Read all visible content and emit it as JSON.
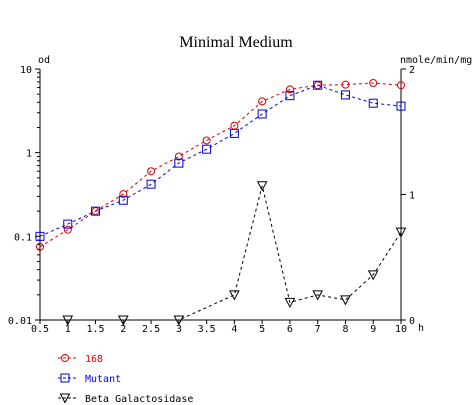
{
  "chart_data": {
    "type": "line",
    "title": "Minimal Medium",
    "ylabel_left": "od",
    "ylabel_right": "nmole/min/mg",
    "xlabel": "h",
    "y_left_scale": "log",
    "y_left_range": [
      0.01,
      10
    ],
    "y_left_ticks": [
      "10",
      "1",
      "0.1",
      "0.01"
    ],
    "y_right_range": [
      0,
      2
    ],
    "y_right_ticks": [
      "2",
      "1",
      "0"
    ],
    "x_range": [
      0.5,
      10
    ],
    "x_tick_labels": [
      "0.5",
      "1",
      "1.5",
      "2",
      "2.5",
      "3",
      "3.5",
      "4",
      "5",
      "6",
      "7",
      "8",
      "9",
      "10"
    ],
    "x_ticks": [
      0.5,
      1,
      1.5,
      2,
      2.5,
      3,
      3.5,
      4,
      5,
      6,
      7,
      8,
      9,
      10
    ],
    "grid": false,
    "legend_position": "bottom-left",
    "series": [
      {
        "name": "168",
        "color": "#dd0000",
        "marker": "circle",
        "axis": "left",
        "x": [
          0.5,
          1,
          1.5,
          2,
          2.5,
          3,
          3.5,
          4,
          5,
          6,
          7,
          8,
          9,
          10
        ],
        "y": [
          0.075,
          0.12,
          0.2,
          0.32,
          0.6,
          0.9,
          1.4,
          2.1,
          4.1,
          5.7,
          6.4,
          6.5,
          6.8,
          6.4
        ]
      },
      {
        "name": "Mutant",
        "color": "#0000dd",
        "marker": "square",
        "axis": "left",
        "x": [
          0.5,
          1,
          1.5,
          2,
          2.5,
          3,
          3.5,
          4,
          5,
          6,
          7,
          8,
          9,
          10
        ],
        "y": [
          0.1,
          0.14,
          0.2,
          0.27,
          0.42,
          0.75,
          1.1,
          1.7,
          2.9,
          4.8,
          6.4,
          4.9,
          3.9,
          3.6
        ]
      },
      {
        "name": "Beta Galactosidase",
        "color": "#000000",
        "marker": "triangle-down",
        "axis": "right",
        "x": [
          1,
          2,
          3,
          4,
          5,
          6,
          7,
          8,
          9,
          10
        ],
        "y": [
          0.0,
          0.0,
          0.0,
          0.2,
          1.07,
          0.14,
          0.2,
          0.16,
          0.36,
          0.7
        ]
      }
    ]
  }
}
